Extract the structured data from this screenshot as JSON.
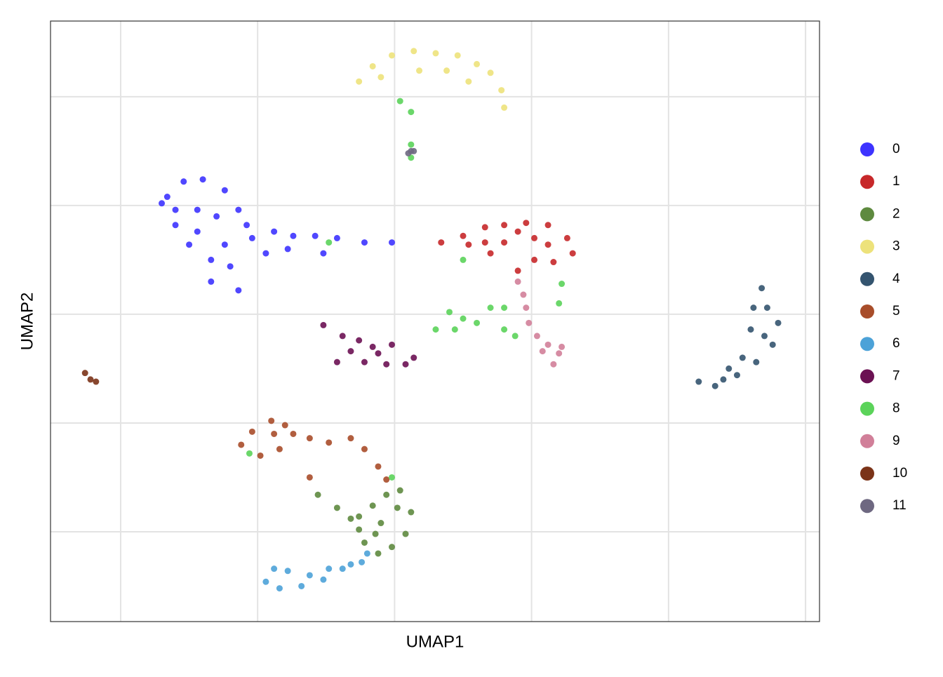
{
  "chart_data": {
    "type": "scatter",
    "x_label": "UMAP1",
    "y_label": "UMAP2",
    "xlim": [
      -12.56,
      15.51
    ],
    "ylim": [
      -14.13,
      13.48
    ],
    "xgrid": [
      -10,
      -5,
      0,
      5,
      10,
      15
    ],
    "ygrid": [
      10,
      5,
      0,
      -5,
      -10
    ],
    "grid": true,
    "legend": "right",
    "series": [
      {
        "name": "0",
        "color": "#3d33ff",
        "x": [
          -8.5,
          -7.7,
          -7.0,
          -6.2,
          -8.0,
          -7.2,
          -6.5,
          -5.7,
          -7.5,
          -6.7,
          -6.0,
          -5.7,
          -5.2,
          -4.4,
          -3.7,
          -2.9,
          -2.1,
          -1.1,
          -0.1,
          -8.3,
          -6.7,
          -5.4,
          -7.2,
          -6.2,
          -4.7,
          -3.9,
          -2.6,
          -8.0
        ],
        "y": [
          5.1,
          6.1,
          6.2,
          5.7,
          4.1,
          4.8,
          4.5,
          4.8,
          3.2,
          2.5,
          2.2,
          1.1,
          3.5,
          3.8,
          3.6,
          3.6,
          3.5,
          3.3,
          3.3,
          5.4,
          1.5,
          4.1,
          3.8,
          3.2,
          2.8,
          3.0,
          2.8,
          4.8
        ]
      },
      {
        "name": "1",
        "color": "#c7282a",
        "x": [
          1.7,
          2.5,
          3.3,
          4.0,
          4.8,
          5.6,
          6.3,
          6.5,
          5.8,
          5.1,
          4.5,
          3.5,
          2.7,
          4.0,
          5.1,
          3.3,
          4.5,
          5.6
        ],
        "y": [
          3.3,
          3.6,
          4.0,
          4.1,
          4.2,
          4.1,
          3.5,
          2.8,
          2.4,
          2.5,
          2.0,
          2.8,
          3.2,
          3.3,
          3.5,
          3.3,
          3.8,
          3.2
        ]
      },
      {
        "name": "2",
        "color": "#5e8a3f",
        "x": [
          -2.8,
          -2.1,
          -1.3,
          -0.8,
          -0.3,
          0.2,
          0.6,
          0.4,
          -0.1,
          -0.6,
          -1.1,
          -1.3,
          -0.5,
          0.1,
          -1.6,
          -0.7
        ],
        "y": [
          -8.3,
          -8.9,
          -9.3,
          -8.8,
          -8.3,
          -8.1,
          -9.1,
          -10.1,
          -10.7,
          -11.0,
          -10.5,
          -9.9,
          -9.6,
          -8.9,
          -9.4,
          -10.1
        ]
      },
      {
        "name": "3",
        "color": "#ede27b",
        "x": [
          -1.3,
          -0.8,
          -0.1,
          0.7,
          1.5,
          2.3,
          3.0,
          3.5,
          3.9,
          4.0,
          0.9,
          1.9,
          -0.5,
          2.7
        ],
        "y": [
          10.7,
          11.4,
          11.9,
          12.1,
          12.0,
          11.9,
          11.5,
          11.1,
          10.3,
          9.5,
          11.2,
          11.2,
          10.9,
          10.7
        ]
      },
      {
        "name": "4",
        "color": "#34546f",
        "x": [
          13.4,
          13.6,
          14.0,
          13.8,
          13.2,
          12.5,
          11.7,
          11.1,
          12.0,
          13.0,
          13.5,
          12.7,
          13.1,
          12.2
        ],
        "y": [
          1.2,
          0.3,
          -0.4,
          -1.4,
          -2.2,
          -2.8,
          -3.3,
          -3.1,
          -3.0,
          -0.7,
          -1.0,
          -2.0,
          0.3,
          -2.5
        ]
      },
      {
        "name": "5",
        "color": "#a84d2a",
        "x": [
          -5.6,
          -5.2,
          -4.5,
          -4.0,
          -3.7,
          -4.2,
          -4.9,
          -3.1,
          -2.4,
          -1.6,
          -1.1,
          -0.6,
          -0.3,
          -3.1,
          -4.4
        ],
        "y": [
          -6.0,
          -5.4,
          -4.9,
          -5.1,
          -5.5,
          -6.2,
          -6.5,
          -5.7,
          -5.9,
          -5.7,
          -6.2,
          -7.0,
          -7.6,
          -7.5,
          -5.5
        ]
      },
      {
        "name": "6",
        "color": "#4ca2d8",
        "x": [
          -4.7,
          -4.2,
          -3.4,
          -2.6,
          -1.9,
          -1.2,
          -1.0,
          -3.9,
          -3.1,
          -2.4,
          -1.6,
          -4.4
        ],
        "y": [
          -12.3,
          -12.6,
          -12.5,
          -12.2,
          -11.7,
          -11.4,
          -11.0,
          -11.8,
          -12.0,
          -11.7,
          -11.5,
          -11.7
        ]
      },
      {
        "name": "7",
        "color": "#6b1153",
        "x": [
          -2.6,
          -1.9,
          -1.3,
          -0.8,
          -0.1,
          0.7,
          0.4,
          -0.3,
          -1.1,
          -2.1,
          -1.6,
          -0.6
        ],
        "y": [
          -0.5,
          -1.0,
          -1.2,
          -1.5,
          -1.4,
          -2.0,
          -2.3,
          -2.3,
          -2.2,
          -2.2,
          -1.7,
          -1.8
        ]
      },
      {
        "name": "8",
        "color": "#5bd35a",
        "x": [
          1.5,
          2.0,
          2.5,
          3.0,
          3.5,
          4.0,
          4.4,
          4.0,
          2.2,
          6.0,
          6.1,
          0.2,
          0.6,
          0.6,
          0.6,
          2.5,
          -2.4,
          -0.1,
          -5.3
        ],
        "y": [
          -0.7,
          0.1,
          -0.2,
          -0.4,
          0.3,
          -0.7,
          -1.0,
          0.3,
          -0.7,
          0.5,
          1.4,
          9.8,
          9.3,
          7.8,
          7.2,
          2.5,
          3.3,
          -7.5,
          -6.4
        ]
      },
      {
        "name": "9",
        "color": "#d17f99",
        "x": [
          4.5,
          4.7,
          4.8,
          4.9,
          5.2,
          5.6,
          6.0,
          5.8,
          5.4,
          6.1
        ],
        "y": [
          1.5,
          0.9,
          0.3,
          -0.4,
          -1.0,
          -1.4,
          -1.8,
          -2.3,
          -1.7,
          -1.5
        ]
      },
      {
        "name": "10",
        "color": "#7b3318",
        "x": [
          -11.3,
          -11.1,
          -10.9
        ],
        "y": [
          -2.7,
          -3.0,
          -3.1
        ]
      },
      {
        "name": "11",
        "color": "#6e6881",
        "x": [
          0.6,
          0.7,
          0.5
        ],
        "y": [
          7.5,
          7.5,
          7.4
        ]
      }
    ]
  }
}
